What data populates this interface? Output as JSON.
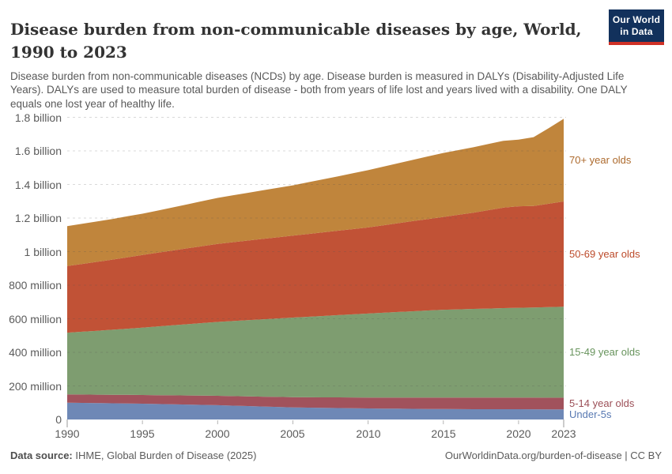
{
  "header": {
    "title": "Disease burden from non-communicable diseases by age, World, 1990 to 2023",
    "subtitle": "Disease burden from non-communicable diseases (NCDs) by age. Disease burden is measured in DALYs (Disability-Adjusted Life Years). DALYs are used to measure total burden of disease - both from years of life lost and years lived with a disability. One DALY equals one lost year of healthy life.",
    "logo": {
      "line1": "Our World",
      "line2": "in Data",
      "bg": "#12315c",
      "accent": "#cf3126"
    }
  },
  "chart_data": {
    "type": "area",
    "stacked": true,
    "title": "Disease burden from non-communicable diseases by age, World, 1990 to 2023",
    "xlabel": "",
    "ylabel": "",
    "values_unit": "million DALYs",
    "ylim": [
      0,
      1800
    ],
    "grid": true,
    "legend_position": "right",
    "x": [
      1990,
      1991,
      1992,
      1993,
      1994,
      1995,
      1996,
      1997,
      1998,
      1999,
      2000,
      2001,
      2002,
      2003,
      2004,
      2005,
      2006,
      2007,
      2008,
      2009,
      2010,
      2011,
      2012,
      2013,
      2014,
      2015,
      2016,
      2017,
      2018,
      2019,
      2020,
      2021,
      2022,
      2023
    ],
    "xticks": [
      1990,
      1995,
      2000,
      2005,
      2010,
      2015,
      2020,
      2023
    ],
    "yticks": [
      {
        "value": 0,
        "label": "0"
      },
      {
        "value": 200,
        "label": "200 million"
      },
      {
        "value": 400,
        "label": "400 million"
      },
      {
        "value": 600,
        "label": "600 million"
      },
      {
        "value": 800,
        "label": "800 million"
      },
      {
        "value": 1000,
        "label": "1 billion"
      },
      {
        "value": 1200,
        "label": "1.2 billion"
      },
      {
        "value": 1400,
        "label": "1.4 billion"
      },
      {
        "value": 1600,
        "label": "1.6 billion"
      },
      {
        "value": 1800,
        "label": "1.8 billion"
      }
    ],
    "series": [
      {
        "name": "Under-5s",
        "color": "#6e88b6",
        "label_color": "#5879b2",
        "values": [
          100,
          99,
          97.8,
          96.6,
          95.3,
          94,
          92.3,
          90.6,
          88.8,
          87,
          85,
          82.4,
          79.8,
          77.2,
          74.6,
          72,
          70.6,
          69.3,
          68.2,
          67.1,
          66,
          65.1,
          64.3,
          63.5,
          62.7,
          62,
          61.7,
          61.4,
          61.2,
          61.1,
          61,
          60.7,
          60.4,
          60
        ]
      },
      {
        "name": "5-14 year olds",
        "color": "#a1525c",
        "label_color": "#9c4f57",
        "values": [
          49,
          49.6,
          50.2,
          50.8,
          51.4,
          52,
          52.8,
          53.6,
          54.4,
          55.2,
          56,
          57,
          58,
          59,
          60,
          61,
          61.8,
          62.6,
          63.4,
          64.2,
          65,
          65.8,
          66.6,
          67.3,
          68,
          68.6,
          68.8,
          69,
          69.1,
          69.2,
          69.3,
          69.5,
          69.7,
          70
        ]
      },
      {
        "name": "15-49 year olds",
        "color": "#7e9d70",
        "label_color": "#68945d",
        "values": [
          368,
          374,
          380.5,
          387,
          394,
          401,
          408.8,
          416.6,
          424.4,
          432.2,
          440,
          447,
          454,
          460.7,
          467.4,
          474,
          479.4,
          484.8,
          490,
          495,
          500,
          504.8,
          509.6,
          514.1,
          518.6,
          523,
          525.6,
          528.2,
          530.6,
          533,
          535,
          536.5,
          539,
          542
        ]
      },
      {
        "name": "50-69 year olds",
        "color": "#c15236",
        "label_color": "#bc4a2a",
        "values": [
          397,
          404,
          411,
          418,
          425.5,
          433,
          439.4,
          445.8,
          452.2,
          458.6,
          465,
          469.6,
          474.2,
          478.8,
          483.4,
          488,
          493,
          498,
          503,
          508,
          513,
          521,
          529,
          537,
          545,
          553,
          563,
          573,
          586,
          599,
          605,
          605,
          616,
          627
        ]
      },
      {
        "name": "70+ year olds",
        "color": "#c0853c",
        "label_color": "#ad6a2d",
        "values": [
          238,
          239,
          240.5,
          242,
          244,
          246,
          251,
          256.5,
          262,
          268,
          274,
          279,
          284.2,
          289.4,
          294.6,
          300,
          307.8,
          315.8,
          324,
          332.4,
          341,
          349,
          357,
          365,
          373,
          381,
          385.5,
          390,
          394,
          398,
          397,
          410,
          450,
          492
        ]
      }
    ]
  },
  "footer": {
    "source_label": "Data source:",
    "source": " IHME, Global Burden of Disease (2025)",
    "link": "OurWorldinData.org/burden-of-disease | CC BY"
  }
}
